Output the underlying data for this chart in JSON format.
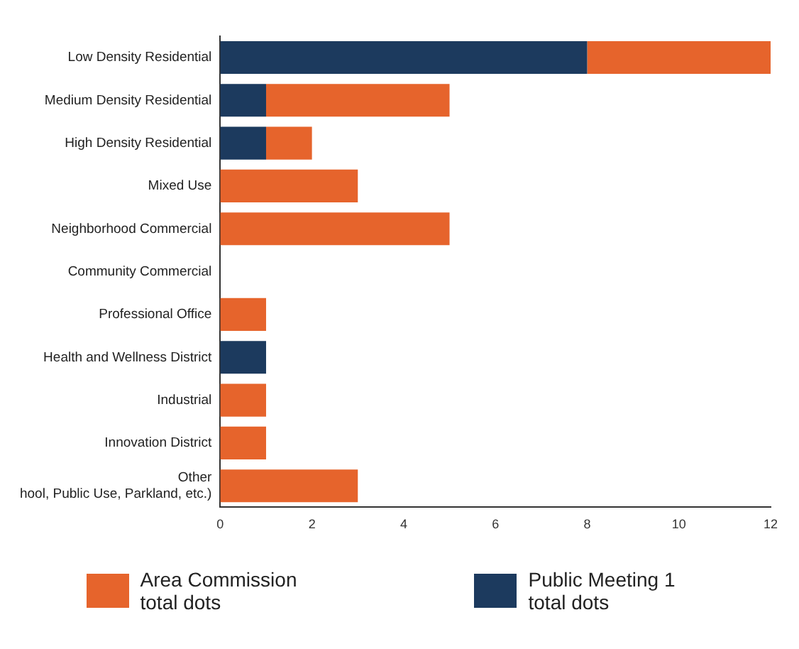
{
  "chart_data": {
    "type": "bar",
    "orientation": "horizontal",
    "stacked": true,
    "categories": [
      "Low Density Residential",
      "Medium Density Residential",
      "High Density Residential",
      "Mixed Use",
      "Neighborhood Commercial",
      "Community Commercial",
      "Professional Office",
      "Health and Wellness District",
      "Industrial",
      "Innovation District",
      "Other\nhool, Public Use, Parkland, etc.)"
    ],
    "series": [
      {
        "name": "Public Meeting 1 total dots",
        "color": "#1c3a5e",
        "values": [
          8,
          1,
          1,
          0,
          0,
          0,
          0,
          1,
          0,
          0,
          0
        ]
      },
      {
        "name": "Area Commission total dots",
        "color": "#e6642c",
        "values": [
          4,
          4,
          1,
          3,
          5,
          0,
          1,
          0,
          1,
          1,
          3
        ]
      }
    ],
    "xlim": [
      0,
      12
    ],
    "xticks": [
      0,
      2,
      4,
      6,
      8,
      10,
      12
    ],
    "grid": false,
    "legend": "bottom"
  }
}
